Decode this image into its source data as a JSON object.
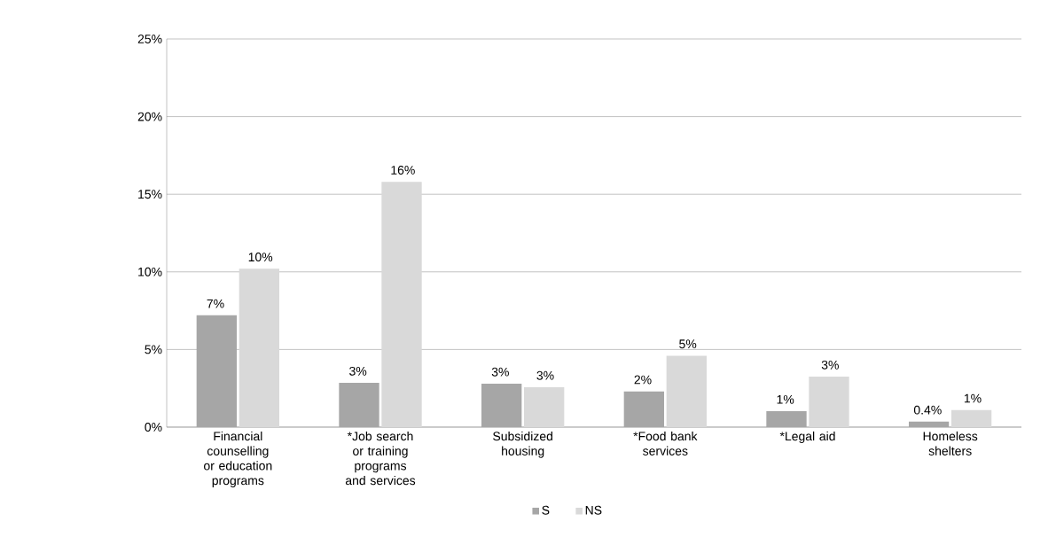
{
  "chart_data": {
    "type": "bar",
    "categories": [
      "Financial counselling or education programs",
      "*Job search or training programs and services",
      "Subsidized housing",
      "*Food bank services",
      "*Legal aid",
      "Homeless shelters"
    ],
    "series": [
      {
        "name": "S",
        "color": "#a6a6a6",
        "values": [
          7.2,
          2.85,
          2.8,
          2.3,
          1.03,
          0.35
        ],
        "value_labels": [
          "7%",
          "3%",
          "3%",
          "2%",
          "1%",
          "0.4%"
        ]
      },
      {
        "name": "NS",
        "color": "#d9d9d9",
        "values": [
          10.2,
          15.8,
          2.57,
          4.6,
          3.25,
          1.1
        ],
        "value_labels": [
          "10%",
          "16%",
          "3%",
          "5%",
          "3%",
          "1%"
        ]
      }
    ],
    "ylim": [
      0,
      25
    ],
    "yticks": [
      {
        "value": 0,
        "label": "0%"
      },
      {
        "value": 5,
        "label": "5%"
      },
      {
        "value": 10,
        "label": "10%"
      },
      {
        "value": 15,
        "label": "15%"
      },
      {
        "value": 20,
        "label": "20%"
      },
      {
        "value": 25,
        "label": "25%"
      }
    ],
    "grid": "y",
    "legend": "bottom"
  }
}
